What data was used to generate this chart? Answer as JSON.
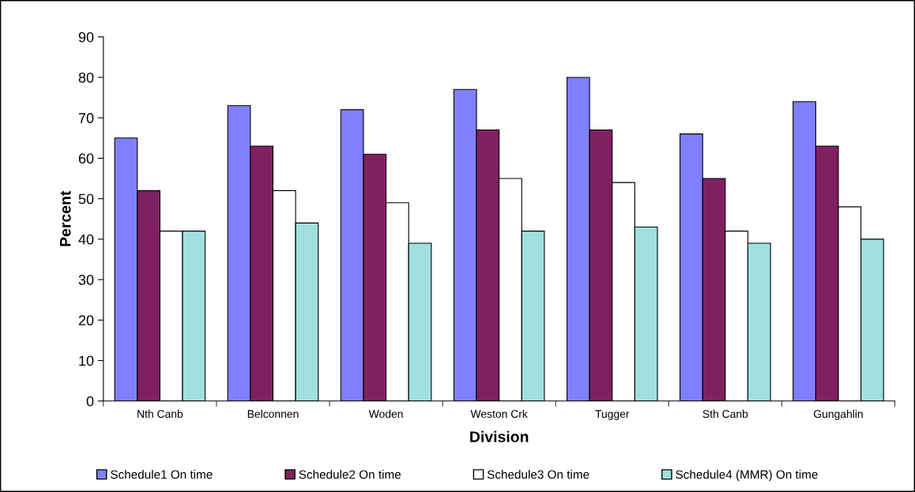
{
  "chart_data": {
    "type": "bar",
    "xlabel": "Division",
    "ylabel": "Percent",
    "categories": [
      "Nth Canb",
      "Belconnen",
      "Woden",
      "Weston Crk",
      "Tugger",
      "Sth Canb",
      "Gungahlin"
    ],
    "series": [
      {
        "name": "Schedule1 On time",
        "color": "#8080ff",
        "values": [
          65,
          73,
          72,
          77,
          80,
          66,
          74
        ]
      },
      {
        "name": "Schedule2 On time",
        "color": "#802060",
        "values": [
          52,
          63,
          61,
          67,
          67,
          55,
          63
        ]
      },
      {
        "name": "Schedule3 On time",
        "color": "#ffffff",
        "values": [
          42,
          52,
          49,
          55,
          54,
          42,
          48
        ]
      },
      {
        "name": "Schedule4 (MMR) On time",
        "color": "#a0e0e0",
        "values": [
          42,
          44,
          39,
          42,
          43,
          39,
          40
        ]
      }
    ],
    "ylim": [
      0,
      90
    ],
    "yticks": [
      0,
      10,
      20,
      30,
      40,
      50,
      60,
      70,
      80,
      90
    ],
    "grid": false,
    "legend": "bottom"
  }
}
